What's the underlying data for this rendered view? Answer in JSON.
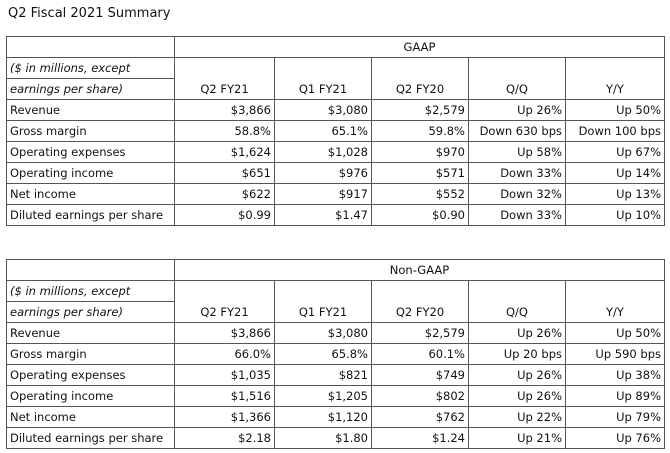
{
  "title": "Q2 Fiscal 2021 Summary",
  "columns": [
    "Q2 FY21",
    "Q1 FY21",
    "Q2 FY20",
    "Q/Q",
    "Y/Y"
  ],
  "row_header_line1": "($ in millions, except",
  "row_header_line2": "earnings per share)",
  "gaap": {
    "label": "GAAP",
    "rows": [
      {
        "label": "Revenue",
        "values": [
          "$3,866",
          "$3,080",
          "$2,579",
          "Up 26%",
          "Up 50%"
        ]
      },
      {
        "label": "Gross margin",
        "values": [
          "58.8%",
          "65.1%",
          "59.8%",
          "Down 630 bps",
          "Down 100 bps"
        ]
      },
      {
        "label": "Operating expenses",
        "values": [
          "$1,624",
          "$1,028",
          "$970",
          "Up 58%",
          "Up 67%"
        ]
      },
      {
        "label": "Operating income",
        "values": [
          "$651",
          "$976",
          "$571",
          "Down 33%",
          "Up 14%"
        ]
      },
      {
        "label": "Net income",
        "values": [
          "$622",
          "$917",
          "$552",
          "Down 32%",
          "Up 13%"
        ]
      },
      {
        "label": "Diluted earnings per share",
        "values": [
          "$0.99",
          "$1.47",
          "$0.90",
          "Down 33%",
          "Up 10%"
        ]
      }
    ]
  },
  "nongaap": {
    "label": "Non-GAAP",
    "rows": [
      {
        "label": "Revenue",
        "values": [
          "$3,866",
          "$3,080",
          "$2,579",
          "Up 26%",
          "Up 50%"
        ]
      },
      {
        "label": "Gross margin",
        "values": [
          "66.0%",
          "65.8%",
          "60.1%",
          "Up 20 bps",
          "Up 590 bps"
        ]
      },
      {
        "label": "Operating expenses",
        "values": [
          "$1,035",
          "$821",
          "$749",
          "Up 26%",
          "Up 38%"
        ]
      },
      {
        "label": "Operating income",
        "values": [
          "$1,516",
          "$1,205",
          "$802",
          "Up 26%",
          "Up 89%"
        ]
      },
      {
        "label": "Net income",
        "values": [
          "$1,366",
          "$1,120",
          "$762",
          "Up 22%",
          "Up 79%"
        ]
      },
      {
        "label": "Diluted earnings per share",
        "values": [
          "$2.18",
          "$1.80",
          "$1.24",
          "Up 21%",
          "Up 76%"
        ]
      }
    ]
  }
}
